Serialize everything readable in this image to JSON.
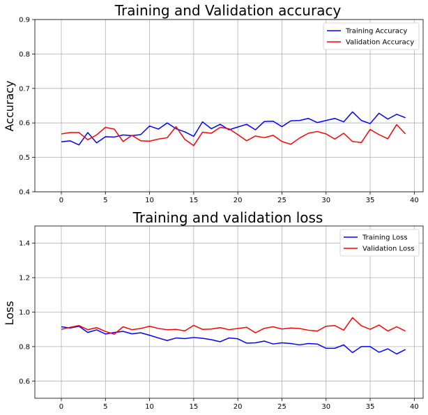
{
  "chart_data": [
    {
      "type": "line",
      "title": "Training and Validation accuracy",
      "xlabel": "",
      "ylabel": "Accuracy",
      "xlim": [
        -3,
        41
      ],
      "ylim": [
        0.4,
        0.9
      ],
      "xticks": [
        0,
        5,
        10,
        15,
        20,
        25,
        30,
        35,
        40
      ],
      "yticks": [
        0.4,
        0.5,
        0.6,
        0.7,
        0.8,
        0.9
      ],
      "grid": true,
      "legend": "top-right",
      "x": [
        0,
        1,
        2,
        3,
        4,
        5,
        6,
        7,
        8,
        9,
        10,
        11,
        12,
        13,
        14,
        15,
        16,
        17,
        18,
        19,
        20,
        21,
        22,
        23,
        24,
        25,
        26,
        27,
        28,
        29,
        30,
        31,
        32,
        33,
        34,
        35,
        36,
        37,
        38,
        39
      ],
      "series": [
        {
          "name": "Training Accuracy",
          "color": "#0000ff",
          "values": [
            0.545,
            0.548,
            0.536,
            0.572,
            0.542,
            0.56,
            0.559,
            0.565,
            0.563,
            0.566,
            0.591,
            0.582,
            0.6,
            0.583,
            0.574,
            0.561,
            0.603,
            0.583,
            0.596,
            0.58,
            0.588,
            0.596,
            0.58,
            0.604,
            0.605,
            0.589,
            0.606,
            0.607,
            0.613,
            0.601,
            0.607,
            0.613,
            0.603,
            0.632,
            0.607,
            0.598,
            0.628,
            0.611,
            0.625,
            0.615
          ]
        },
        {
          "name": "Validation Accuracy",
          "color": "#ff0000",
          "values": [
            0.568,
            0.572,
            0.572,
            0.551,
            0.565,
            0.587,
            0.582,
            0.546,
            0.564,
            0.548,
            0.547,
            0.553,
            0.557,
            0.589,
            0.552,
            0.534,
            0.573,
            0.57,
            0.587,
            0.583,
            0.566,
            0.548,
            0.562,
            0.557,
            0.564,
            0.546,
            0.538,
            0.556,
            0.57,
            0.575,
            0.568,
            0.553,
            0.57,
            0.546,
            0.543,
            0.581,
            0.566,
            0.554,
            0.595,
            0.568
          ]
        }
      ]
    },
    {
      "type": "line",
      "title": "Training and validation loss",
      "xlabel": "",
      "ylabel": "Loss",
      "xlim": [
        -3,
        41
      ],
      "ylim": [
        0.5,
        1.5
      ],
      "xticks": [
        0,
        5,
        10,
        15,
        20,
        25,
        30,
        35,
        40
      ],
      "yticks": [
        0.6,
        0.8,
        1.0,
        1.2,
        1.4
      ],
      "grid": true,
      "legend": "top-right",
      "x": [
        0,
        1,
        2,
        3,
        4,
        5,
        6,
        7,
        8,
        9,
        10,
        11,
        12,
        13,
        14,
        15,
        16,
        17,
        18,
        19,
        20,
        21,
        22,
        23,
        24,
        25,
        26,
        27,
        28,
        29,
        30,
        31,
        32,
        33,
        34,
        35,
        36,
        37,
        38,
        39
      ],
      "series": [
        {
          "name": "Training Loss",
          "color": "#0000ff",
          "values": [
            0.915,
            0.908,
            0.918,
            0.882,
            0.897,
            0.873,
            0.882,
            0.888,
            0.874,
            0.88,
            0.866,
            0.85,
            0.835,
            0.85,
            0.846,
            0.853,
            0.848,
            0.84,
            0.828,
            0.85,
            0.845,
            0.82,
            0.822,
            0.832,
            0.815,
            0.822,
            0.818,
            0.81,
            0.818,
            0.815,
            0.79,
            0.79,
            0.81,
            0.765,
            0.8,
            0.8,
            0.767,
            0.787,
            0.757,
            0.783
          ]
        },
        {
          "name": "Validation Loss",
          "color": "#ff0000",
          "values": [
            0.9,
            0.912,
            0.922,
            0.898,
            0.91,
            0.888,
            0.872,
            0.915,
            0.898,
            0.905,
            0.918,
            0.905,
            0.898,
            0.9,
            0.891,
            0.923,
            0.9,
            0.902,
            0.91,
            0.898,
            0.905,
            0.912,
            0.88,
            0.906,
            0.915,
            0.902,
            0.908,
            0.905,
            0.895,
            0.89,
            0.918,
            0.922,
            0.895,
            0.968,
            0.921,
            0.9,
            0.925,
            0.89,
            0.915,
            0.89
          ]
        }
      ]
    }
  ]
}
